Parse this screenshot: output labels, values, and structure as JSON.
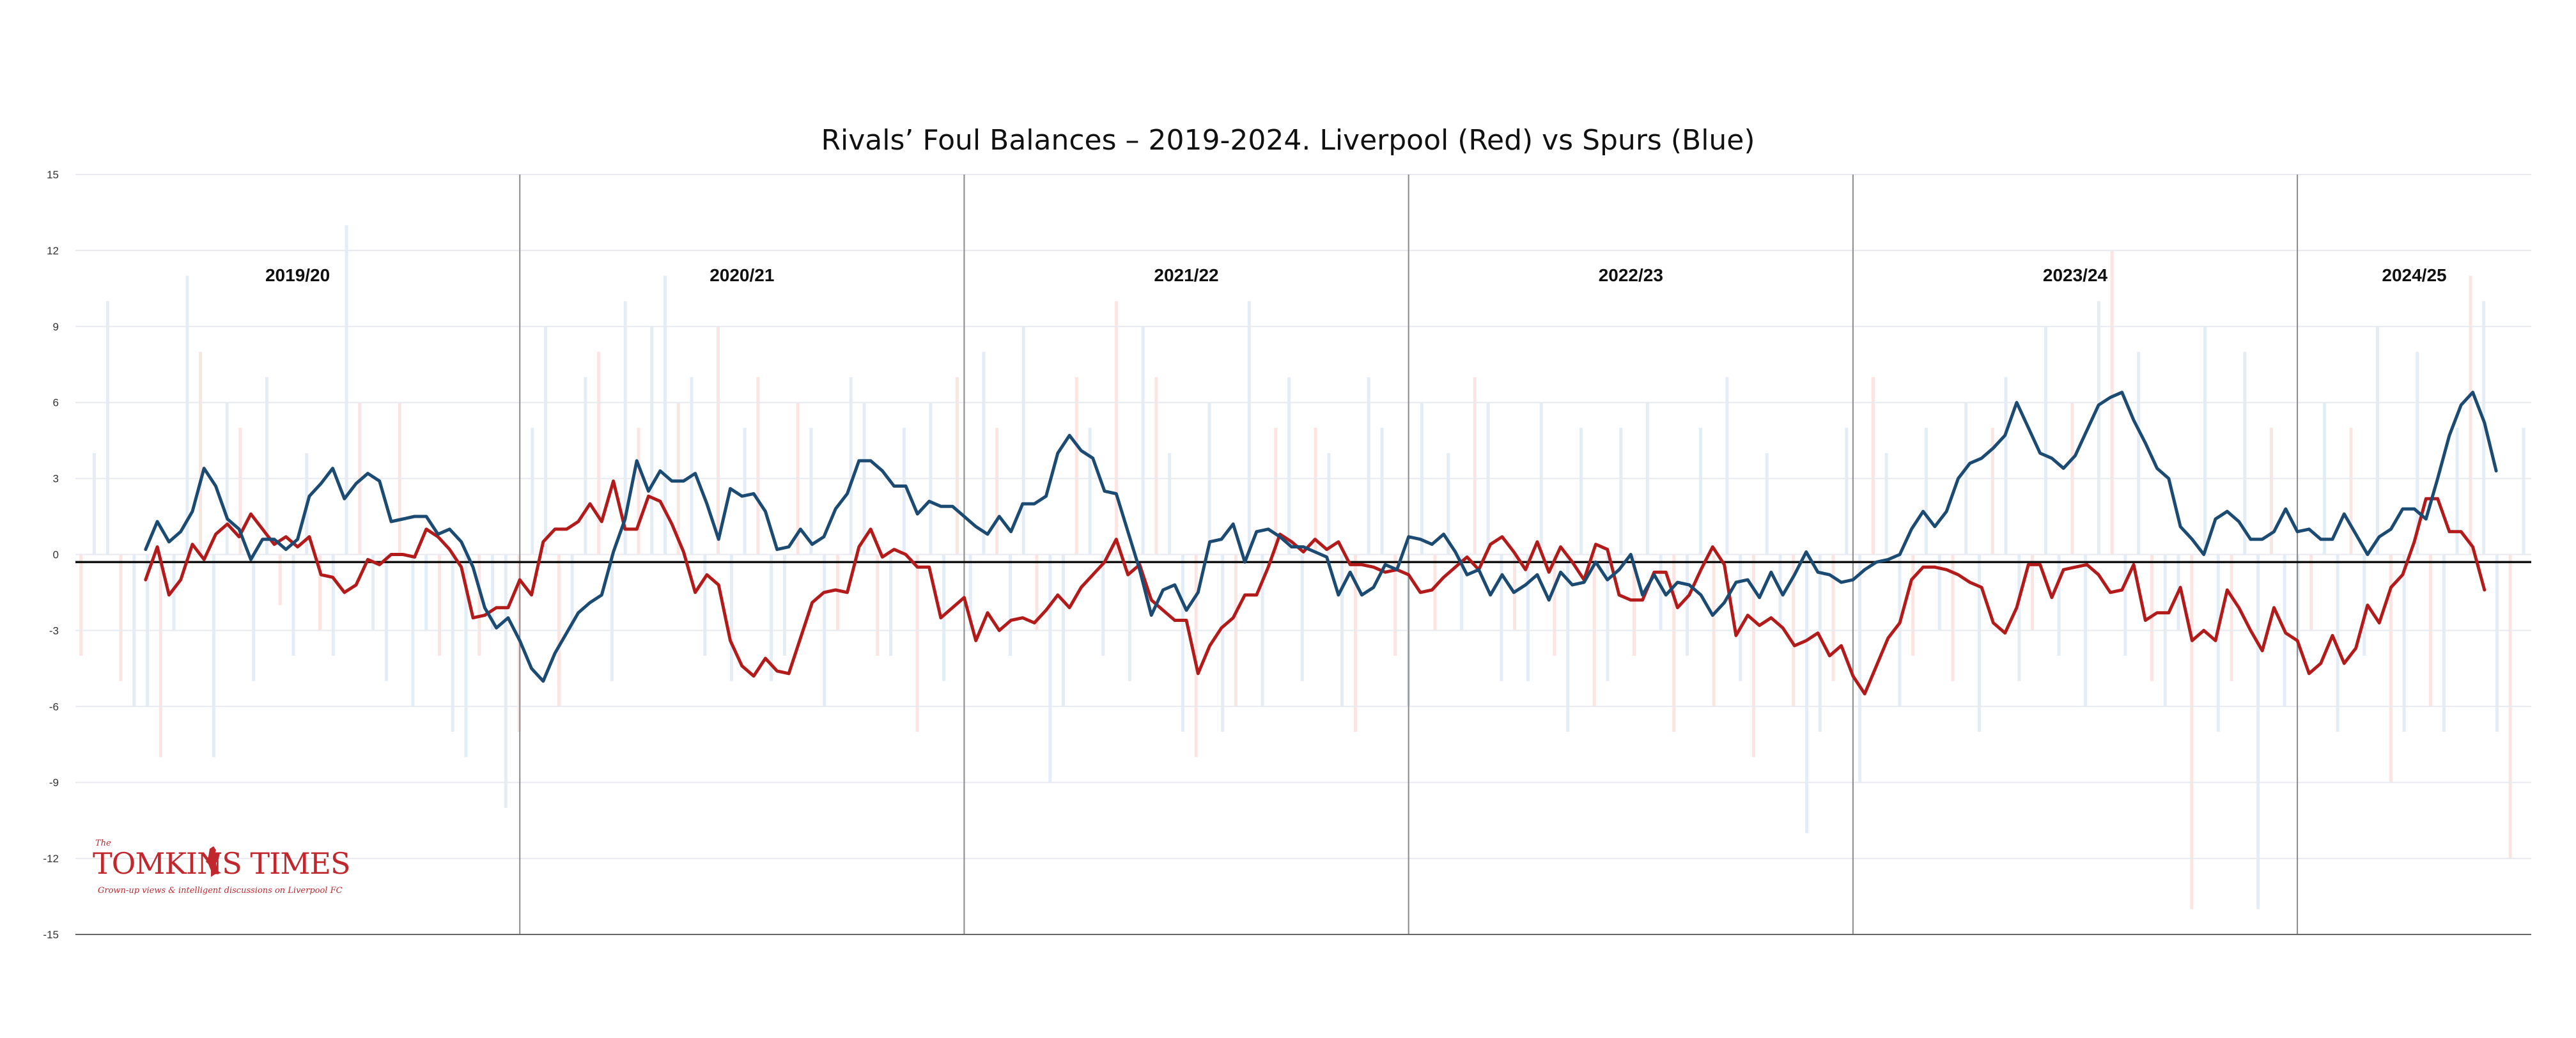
{
  "chart_data": {
    "type": "line",
    "title": "Rivals’ Foul Balances – 2019-2024. Liverpool (Red) vs Spurs (Blue)",
    "xlabel": "",
    "ylabel": "",
    "ylim": [
      -15,
      15
    ],
    "yticks": [
      15,
      12,
      9,
      6,
      3,
      0,
      -3,
      -6,
      -9,
      -12,
      -15
    ],
    "zero_line_value": -0.3,
    "n_matches": 210,
    "seasons": [
      {
        "label": "2019/20",
        "start": 0,
        "end": 38
      },
      {
        "label": "2020/21",
        "start": 38,
        "end": 76
      },
      {
        "label": "2021/22",
        "start": 76,
        "end": 114
      },
      {
        "label": "2022/23",
        "start": 114,
        "end": 152
      },
      {
        "label": "2023/24",
        "start": 152,
        "end": 190
      },
      {
        "label": "2024/25",
        "start": 190,
        "end": 210
      }
    ],
    "series": [
      {
        "name": "Liverpool (Red)",
        "color": "#b31b1b",
        "start": 6,
        "values": [
          -1.0,
          0.3,
          -1.6,
          -1.0,
          0.4,
          -0.2,
          0.8,
          1.2,
          0.7,
          1.6,
          1.0,
          0.4,
          0.7,
          0.3,
          0.7,
          -0.8,
          -0.9,
          -1.5,
          -1.2,
          -0.2,
          -0.4,
          0.0,
          0.0,
          -0.1,
          1.0,
          0.7,
          0.2,
          -0.5,
          -2.5,
          -2.4,
          -2.1,
          -2.1,
          -1.0,
          -1.6,
          0.5,
          1.0,
          1.0,
          1.3,
          2.0,
          1.3,
          2.9,
          1.0,
          1.0,
          2.3,
          2.1,
          1.2,
          0.1,
          -1.5,
          -0.8,
          -1.2,
          -3.4,
          -4.4,
          -4.8,
          -4.1,
          -4.6,
          -4.7,
          -3.3,
          -1.9,
          -1.5,
          -1.4,
          -1.5,
          0.3,
          1.0,
          -0.1,
          0.2,
          0.0,
          -0.5,
          -0.5,
          -2.5,
          -2.1,
          -1.7,
          -3.4,
          -2.3,
          -3.0,
          -2.6,
          -2.5,
          -2.7,
          -2.2,
          -1.6,
          -2.1,
          -1.3,
          -0.8,
          -0.3,
          0.6,
          -0.8,
          -0.4,
          -1.8,
          -2.2,
          -2.6,
          -2.6,
          -4.7,
          -3.6,
          -2.9,
          -2.5,
          -1.6,
          -1.6,
          -0.5,
          0.8,
          0.5,
          0.1,
          0.6,
          0.2,
          0.5,
          -0.4,
          -0.4,
          -0.5,
          -0.7,
          -0.6,
          -0.8,
          -1.5,
          -1.4,
          -0.9,
          -0.5,
          -0.1,
          -0.6,
          0.4,
          0.7,
          0.1,
          -0.6,
          0.5,
          -0.7,
          0.3,
          -0.3,
          -1.0,
          0.4,
          0.2,
          -1.6,
          -1.8,
          -1.8,
          -0.7,
          -0.7,
          -2.1,
          -1.6,
          -0.6,
          0.3,
          -0.4,
          -3.2,
          -2.4,
          -2.8,
          -2.5,
          -2.9,
          -3.6,
          -3.4,
          -3.1,
          -4.0,
          -3.6,
          -4.8,
          -5.5,
          -4.4,
          -3.3,
          -2.7,
          -1.0,
          -0.5,
          -0.5,
          -0.6,
          -0.8,
          -1.1,
          -1.3,
          -2.7,
          -3.1,
          -2.1,
          -0.4,
          -0.4,
          -1.7,
          -0.6,
          -0.5,
          -0.4,
          -0.8,
          -1.5,
          -1.4,
          -0.4,
          -2.6,
          -2.3,
          -2.3,
          -1.3,
          -3.4,
          -3.0,
          -3.4,
          -1.4,
          -2.1,
          -3.0,
          -3.8,
          -2.1,
          -3.1,
          -3.4,
          -4.7,
          -4.3,
          -3.2,
          -4.3,
          -3.7,
          -2.0,
          -2.7,
          -1.3,
          -0.8,
          0.5,
          2.2,
          2.2,
          0.9,
          0.9,
          0.3,
          -1.4
        ]
      },
      {
        "name": "Spurs (Blue)",
        "color": "#1b4a72",
        "start": 6,
        "values": [
          0.2,
          1.3,
          0.5,
          0.9,
          1.7,
          3.4,
          2.7,
          1.4,
          1.0,
          -0.2,
          0.6,
          0.6,
          0.2,
          0.6,
          2.3,
          2.8,
          3.4,
          2.2,
          2.8,
          3.2,
          2.9,
          1.3,
          1.4,
          1.5,
          1.5,
          0.8,
          1.0,
          0.5,
          -0.5,
          -2.1,
          -2.9,
          -2.5,
          -3.4,
          -4.5,
          -5.0,
          -3.9,
          -3.1,
          -2.3,
          -1.9,
          -1.6,
          0.1,
          1.4,
          3.7,
          2.5,
          3.3,
          2.9,
          2.9,
          3.2,
          2.0,
          0.6,
          2.6,
          2.3,
          2.4,
          1.7,
          0.2,
          0.3,
          1.0,
          0.4,
          0.7,
          1.8,
          2.4,
          3.7,
          3.7,
          3.3,
          2.7,
          2.7,
          1.6,
          2.1,
          1.9,
          1.9,
          1.5,
          1.1,
          0.8,
          1.5,
          0.9,
          2.0,
          2.0,
          2.3,
          4.0,
          4.7,
          4.1,
          3.8,
          2.5,
          2.4,
          0.9,
          -0.6,
          -2.4,
          -1.4,
          -1.2,
          -2.2,
          -1.5,
          0.5,
          0.6,
          1.2,
          -0.3,
          0.9,
          1.0,
          0.7,
          0.3,
          0.3,
          0.1,
          -0.1,
          -1.6,
          -0.7,
          -1.6,
          -1.3,
          -0.4,
          -0.6,
          0.7,
          0.6,
          0.4,
          0.8,
          0.1,
          -0.8,
          -0.6,
          -1.6,
          -0.8,
          -1.5,
          -1.2,
          -0.8,
          -1.8,
          -0.7,
          -1.2,
          -1.1,
          -0.3,
          -1.0,
          -0.6,
          0.0,
          -1.6,
          -0.8,
          -1.6,
          -1.1,
          -1.2,
          -1.6,
          -2.4,
          -1.9,
          -1.1,
          -1.0,
          -1.7,
          -0.7,
          -1.6,
          -0.8,
          0.1,
          -0.7,
          -0.8,
          -1.1,
          -1.0,
          -0.6,
          -0.3,
          -0.2,
          0.0,
          1.0,
          1.7,
          1.1,
          1.7,
          3.0,
          3.6,
          3.8,
          4.2,
          4.7,
          6.0,
          5.0,
          4.0,
          3.8,
          3.4,
          3.9,
          4.9,
          5.9,
          6.2,
          6.4,
          5.3,
          4.4,
          3.4,
          3.0,
          1.1,
          0.6,
          0.0,
          1.4,
          1.7,
          1.3,
          0.6,
          0.6,
          0.9,
          1.8,
          0.9,
          1.0,
          0.6,
          0.6,
          1.6,
          0.8,
          0.0,
          0.7,
          1.0,
          1.8,
          1.8,
          1.4,
          3.0,
          4.7,
          5.9,
          6.4,
          5.2,
          3.3
        ]
      }
    ],
    "background_bars": [
      -4,
      4,
      10,
      -5,
      -6,
      -6,
      -8,
      -3,
      11,
      8,
      -8,
      6,
      5,
      -5,
      7,
      -2,
      -4,
      4,
      -3,
      -4,
      13,
      6,
      -3,
      -5,
      6,
      -6,
      -3,
      -4,
      -7,
      -8,
      -4,
      -3,
      -10,
      -7,
      5,
      9,
      -6,
      -3,
      7,
      8,
      -5,
      10,
      5,
      9,
      11,
      6,
      7,
      -4,
      9,
      -5,
      5,
      7,
      -5,
      -4,
      6,
      5,
      -6,
      -3,
      7,
      6,
      -4,
      -4,
      5,
      -7,
      6,
      -5,
      7,
      -3,
      8,
      5,
      -4,
      9,
      -3,
      -9,
      -6,
      7,
      5,
      -4,
      10,
      -5,
      9,
      7,
      4,
      -7,
      -8,
      6,
      -7,
      -6,
      10,
      -6,
      5,
      7,
      -5,
      5,
      4,
      -6,
      -7,
      7,
      5,
      -4,
      -6,
      6,
      -3,
      4,
      -3,
      7,
      6,
      -5,
      -3,
      -5,
      6,
      -4,
      -7,
      5,
      -6,
      -5,
      5,
      -4,
      6,
      -3,
      -7,
      -4,
      5,
      -6,
      7,
      -5,
      -8,
      4,
      -3,
      -6,
      -11,
      -7,
      -5,
      5,
      -9,
      7,
      4,
      -6,
      -4,
      5,
      -3,
      -5,
      6,
      -7,
      5,
      7,
      -5,
      -3,
      9,
      -4,
      6,
      -6,
      10,
      12,
      -4,
      8,
      -5,
      -6,
      -3,
      -14,
      9,
      -7,
      -5,
      8,
      -14,
      5,
      -6,
      -4,
      -3,
      6,
      -7,
      5,
      -4,
      9,
      -9,
      -7,
      8,
      -6,
      -7,
      5,
      11,
      10,
      -7,
      -12,
      5
    ]
  },
  "watermark": {
    "the": "The",
    "name": "TOMKINS TIMES",
    "tagline": "Grown-up views & intelligent discussions on Liverpool FC"
  }
}
